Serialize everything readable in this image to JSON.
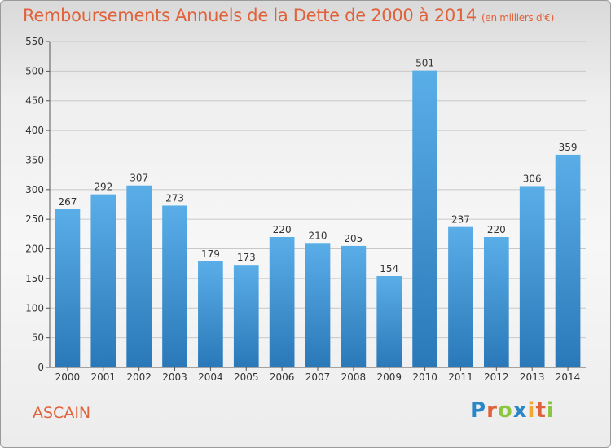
{
  "header": {
    "title": "Remboursements Annuels de la Dette de 2000 à 2014",
    "subtitle": "(en milliers d'€)"
  },
  "footer": {
    "city": "ASCAIN",
    "logo_letters": [
      "P",
      "r",
      "o",
      "x",
      "i",
      "t",
      "i"
    ],
    "logo_colors": [
      "#2b86c8",
      "#e0623b",
      "#8cc63f",
      "#2b86c8",
      "#f2a830",
      "#e0623b",
      "#8cc63f"
    ]
  },
  "chart_data": {
    "type": "bar",
    "title": "Remboursements Annuels de la Dette de 2000 à 2014",
    "subtitle": "(en milliers d'€)",
    "categories": [
      "2000",
      "2001",
      "2002",
      "2003",
      "2004",
      "2005",
      "2006",
      "2007",
      "2008",
      "2009",
      "2010",
      "2011",
      "2012",
      "2013",
      "2014"
    ],
    "values": [
      267,
      292,
      307,
      273,
      179,
      173,
      220,
      210,
      205,
      154,
      501,
      237,
      220,
      306,
      359
    ],
    "ylim": [
      0,
      550
    ],
    "yticks": [
      0,
      50,
      100,
      150,
      200,
      250,
      300,
      350,
      400,
      450,
      500,
      550
    ],
    "grid": true,
    "bar_color_top": "#5aaee8",
    "bar_color_bottom": "#2a78b8"
  }
}
